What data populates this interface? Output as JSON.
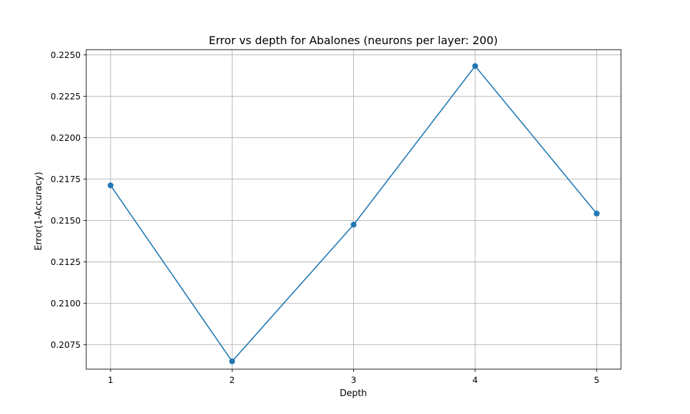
{
  "chart_data": {
    "type": "line",
    "title": "Error vs depth for Abalones (neurons per layer: 200)",
    "xlabel": "Depth",
    "ylabel": "Error(1-Accuracy)",
    "x": [
      1,
      2,
      3,
      4,
      5
    ],
    "series": [
      {
        "values": [
          0.21712,
          0.2065,
          0.21475,
          0.22432,
          0.21542
        ],
        "color": "#1f77b4",
        "marker": "circle"
      }
    ],
    "xticks": [
      "1",
      "2",
      "3",
      "4",
      "5"
    ],
    "yticks": [
      "0.2075",
      "0.2100",
      "0.2125",
      "0.2150",
      "0.2175",
      "0.2200",
      "0.2225",
      "0.2250"
    ],
    "xlim": [
      0.8,
      5.2
    ],
    "ylim": [
      0.20603,
      0.22531
    ],
    "grid": true,
    "legend": "none"
  }
}
